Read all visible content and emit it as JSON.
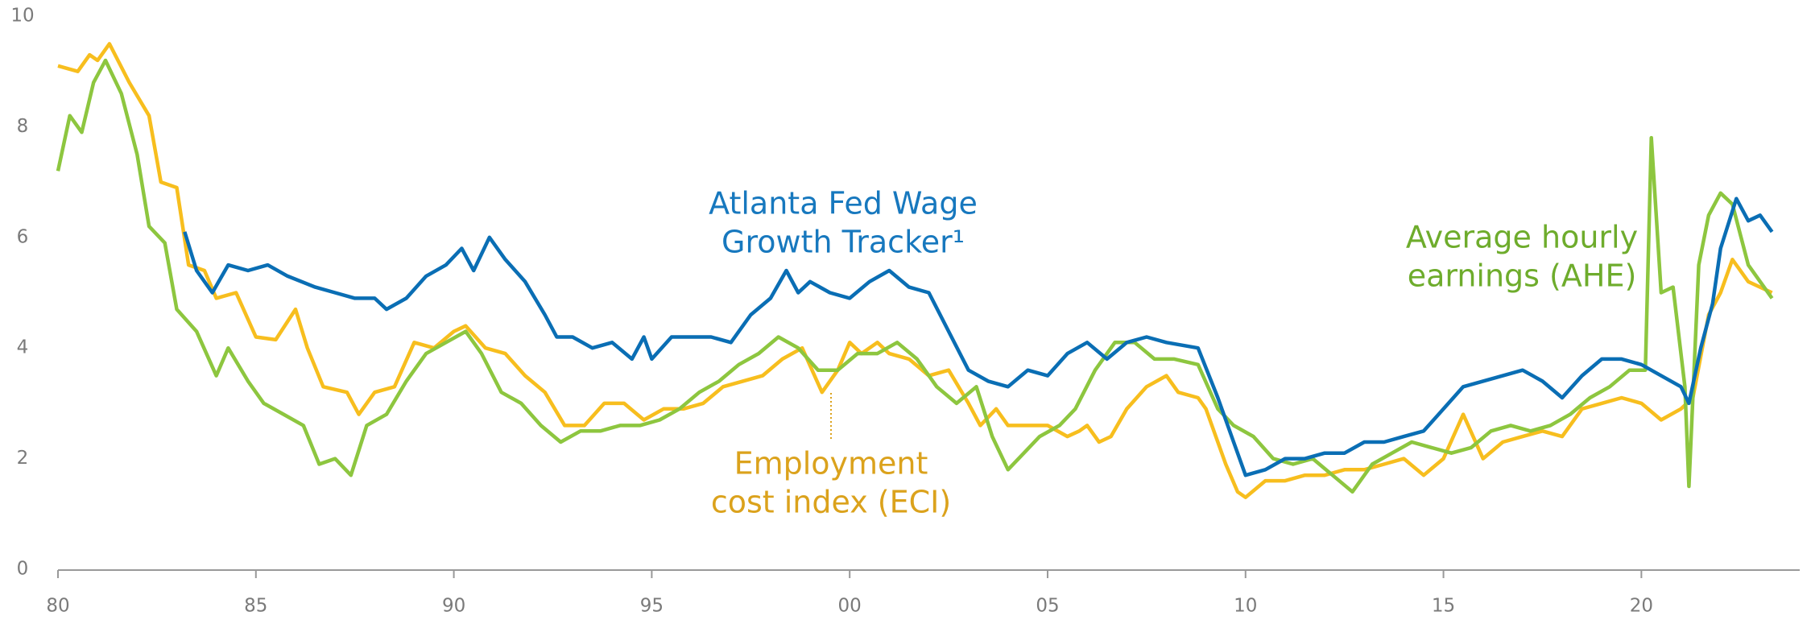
{
  "chart_data": {
    "type": "line",
    "xlim": [
      1980,
      2024
    ],
    "ylim": [
      0,
      10
    ],
    "yticks": [
      0,
      2,
      4,
      6,
      8,
      10
    ],
    "xticks": [
      {
        "value": 1980,
        "label": "80"
      },
      {
        "value": 1985,
        "label": "85"
      },
      {
        "value": 1990,
        "label": "90"
      },
      {
        "value": 1995,
        "label": "95"
      },
      {
        "value": 2000,
        "label": "00"
      },
      {
        "value": 2005,
        "label": "05"
      },
      {
        "value": 2010,
        "label": "10"
      },
      {
        "value": 2015,
        "label": "15"
      },
      {
        "value": 2020,
        "label": "20"
      }
    ],
    "grid": false,
    "series": [
      {
        "name": "Employment cost index (ECI)",
        "color": "#f7be1e",
        "x": [
          1980,
          1980.5,
          1980.8,
          1981,
          1981.3,
          1981.8,
          1982.3,
          1982.6,
          1983,
          1983.3,
          1983.7,
          1984,
          1984.5,
          1985,
          1985.5,
          1986,
          1986.3,
          1986.7,
          1987.3,
          1987.6,
          1988,
          1988.5,
          1989,
          1989.5,
          1990,
          1990.3,
          1990.8,
          1991.3,
          1991.8,
          1992.3,
          1992.8,
          1993.3,
          1993.8,
          1994.3,
          1994.8,
          1995.3,
          1995.8,
          1996.3,
          1996.8,
          1997.3,
          1997.8,
          1998.3,
          1998.8,
          1999.3,
          1999.7,
          2000,
          2000.3,
          2000.7,
          2001,
          2001.5,
          2002,
          2002.5,
          2003,
          2003.3,
          2003.7,
          2004,
          2004.5,
          2005,
          2005.5,
          2005.8,
          2006,
          2006.3,
          2006.6,
          2007,
          2007.5,
          2008,
          2008.3,
          2008.8,
          2009,
          2009.5,
          2009.8,
          2010,
          2010.5,
          2011,
          2011.5,
          2012,
          2012.5,
          2013,
          2013.5,
          2014,
          2014.5,
          2015,
          2015.5,
          2016,
          2016.5,
          2017,
          2017.5,
          2018,
          2018.5,
          2019,
          2019.5,
          2020,
          2020.5,
          2021,
          2021.3,
          2021.7,
          2022,
          2022.3,
          2022.7,
          2023.3
        ],
        "values": [
          9.1,
          9.0,
          9.3,
          9.2,
          9.5,
          8.8,
          8.2,
          7.0,
          6.9,
          5.5,
          5.4,
          4.9,
          5.0,
          4.2,
          4.15,
          4.7,
          4.0,
          3.3,
          3.2,
          2.8,
          3.2,
          3.3,
          4.1,
          4.0,
          4.3,
          4.4,
          4.0,
          3.9,
          3.5,
          3.2,
          2.6,
          2.6,
          3.0,
          3.0,
          2.7,
          2.9,
          2.9,
          3.0,
          3.3,
          3.4,
          3.5,
          3.8,
          4.0,
          3.2,
          3.6,
          4.1,
          3.9,
          4.1,
          3.9,
          3.8,
          3.5,
          3.6,
          3.0,
          2.6,
          2.9,
          2.6,
          2.6,
          2.6,
          2.4,
          2.5,
          2.6,
          2.3,
          2.4,
          2.9,
          3.3,
          3.5,
          3.2,
          3.1,
          2.9,
          1.9,
          1.4,
          1.3,
          1.6,
          1.6,
          1.7,
          1.7,
          1.8,
          1.8,
          1.9,
          2.0,
          1.7,
          2.0,
          2.8,
          2.0,
          2.3,
          2.4,
          2.5,
          2.4,
          2.9,
          3.0,
          3.1,
          3.0,
          2.7,
          2.9,
          3.1,
          4.6,
          5.0,
          5.6,
          5.2,
          5.0
        ]
      },
      {
        "name": "Atlanta Fed Wage Growth Tracker",
        "color": "#0a6eb4",
        "x": [
          1983.2,
          1983.5,
          1983.9,
          1984.3,
          1984.8,
          1985.3,
          1985.8,
          1986.5,
          1987,
          1987.5,
          1988,
          1988.3,
          1988.8,
          1989.3,
          1989.8,
          1990.2,
          1990.5,
          1990.9,
          1991.3,
          1991.8,
          1992.3,
          1992.6,
          1993,
          1993.5,
          1994,
          1994.5,
          1994.8,
          1995,
          1995.5,
          1996.5,
          1997,
          1997.5,
          1998,
          1998.4,
          1998.7,
          1999,
          1999.5,
          2000,
          2000.5,
          2001,
          2001.5,
          2002,
          2002.5,
          2003,
          2003.5,
          2004,
          2004.5,
          2005,
          2005.5,
          2006,
          2006.5,
          2007,
          2007.5,
          2008,
          2008.8,
          2009.3,
          2009.7,
          2010,
          2010.5,
          2011,
          2011.5,
          2012,
          2012.5,
          2013,
          2013.5,
          2014,
          2014.5,
          2015,
          2015.5,
          2016,
          2016.5,
          2017,
          2017.5,
          2018,
          2018.5,
          2019,
          2019.5,
          2020,
          2020.5,
          2021,
          2021.2,
          2021.5,
          2021.8,
          2022,
          2022.4,
          2022.7,
          2023,
          2023.3
        ],
        "values": [
          6.1,
          5.4,
          5.0,
          5.5,
          5.4,
          5.5,
          5.3,
          5.1,
          5.0,
          4.9,
          4.9,
          4.7,
          4.9,
          5.3,
          5.5,
          5.8,
          5.4,
          6.0,
          5.6,
          5.2,
          4.6,
          4.2,
          4.2,
          4.0,
          4.1,
          3.8,
          4.2,
          3.8,
          4.2,
          4.2,
          4.1,
          4.6,
          4.9,
          5.4,
          5.0,
          5.2,
          5.0,
          4.9,
          5.2,
          5.4,
          5.1,
          5.0,
          4.3,
          3.6,
          3.4,
          3.3,
          3.6,
          3.5,
          3.9,
          4.1,
          3.8,
          4.1,
          4.2,
          4.1,
          4.0,
          3.1,
          2.3,
          1.7,
          1.8,
          2.0,
          2.0,
          2.1,
          2.1,
          2.3,
          2.3,
          2.4,
          2.5,
          2.9,
          3.3,
          3.4,
          3.5,
          3.6,
          3.4,
          3.1,
          3.5,
          3.8,
          3.8,
          3.7,
          3.5,
          3.3,
          3.0,
          4.0,
          4.8,
          5.8,
          6.7,
          6.3,
          6.4,
          6.1
        ]
      },
      {
        "name": "Average hourly earnings (AHE)",
        "color": "#8dc63f",
        "x": [
          1980,
          1980.3,
          1980.6,
          1980.9,
          1981.2,
          1981.6,
          1982,
          1982.3,
          1982.7,
          1983,
          1983.5,
          1984,
          1984.3,
          1984.8,
          1985.2,
          1985.7,
          1986.2,
          1986.6,
          1987,
          1987.4,
          1987.8,
          1988.3,
          1988.8,
          1989.3,
          1989.8,
          1990.3,
          1990.7,
          1991.2,
          1991.7,
          1992.2,
          1992.7,
          1993.2,
          1993.7,
          1994.2,
          1994.7,
          1995.2,
          1995.7,
          1996.2,
          1996.7,
          1997.2,
          1997.7,
          1998.2,
          1998.7,
          1999.2,
          1999.7,
          2000.2,
          2000.7,
          2001.2,
          2001.7,
          2002.2,
          2002.7,
          2003.2,
          2003.6,
          2004,
          2004.4,
          2004.8,
          2005.3,
          2005.7,
          2006.2,
          2006.7,
          2007.2,
          2007.7,
          2008.2,
          2008.8,
          2009.3,
          2009.7,
          2010.2,
          2010.7,
          2011.2,
          2011.7,
          2012.2,
          2012.7,
          2013.2,
          2013.7,
          2014.2,
          2014.7,
          2015.2,
          2015.7,
          2016.2,
          2016.7,
          2017.2,
          2017.7,
          2018.2,
          2018.7,
          2019.2,
          2019.7,
          2020.1,
          2020.25,
          2020.5,
          2020.8,
          2021.1,
          2021.2,
          2021.45,
          2021.7,
          2022,
          2022.3,
          2022.7,
          2023.3
        ],
        "values": [
          7.2,
          8.2,
          7.9,
          8.8,
          9.2,
          8.6,
          7.5,
          6.2,
          5.9,
          4.7,
          4.3,
          3.5,
          4.0,
          3.4,
          3.0,
          2.8,
          2.6,
          1.9,
          2.0,
          1.7,
          2.6,
          2.8,
          3.4,
          3.9,
          4.1,
          4.3,
          3.9,
          3.2,
          3.0,
          2.6,
          2.3,
          2.5,
          2.5,
          2.6,
          2.6,
          2.7,
          2.9,
          3.2,
          3.4,
          3.7,
          3.9,
          4.2,
          4.0,
          3.6,
          3.6,
          3.9,
          3.9,
          4.1,
          3.8,
          3.3,
          3.0,
          3.3,
          2.4,
          1.8,
          2.1,
          2.4,
          2.6,
          2.9,
          3.6,
          4.1,
          4.1,
          3.8,
          3.8,
          3.7,
          2.9,
          2.6,
          2.4,
          2.0,
          1.9,
          2.0,
          1.7,
          1.4,
          1.9,
          2.1,
          2.3,
          2.2,
          2.1,
          2.2,
          2.5,
          2.6,
          2.5,
          2.6,
          2.8,
          3.1,
          3.3,
          3.6,
          3.6,
          7.8,
          5.0,
          5.1,
          3.3,
          1.5,
          5.5,
          6.4,
          6.8,
          6.6,
          5.5,
          4.9
        ]
      }
    ],
    "annotations": [
      {
        "lines": [
          "Employment",
          "cost index (ECI)"
        ],
        "color": "#dba21c"
      },
      {
        "lines": [
          "Atlanta Fed Wage",
          "Growth Tracker¹"
        ],
        "color": "#1778be"
      },
      {
        "lines": [
          "Average hourly",
          "earnings (AHE)"
        ],
        "color": "#6eac2c"
      }
    ]
  }
}
